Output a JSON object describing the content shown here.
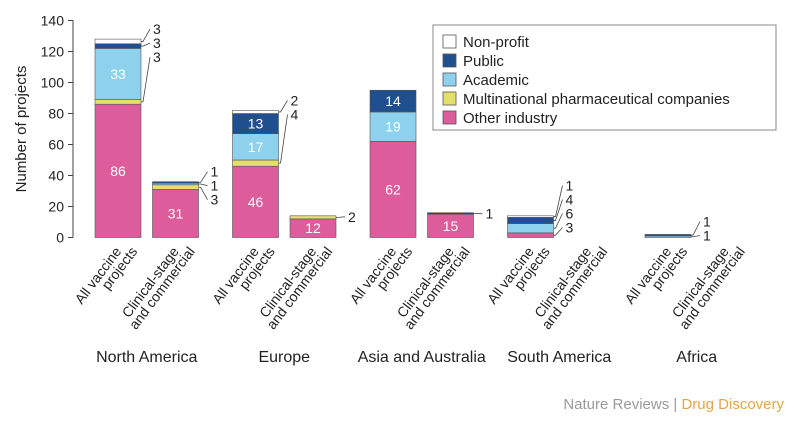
{
  "chart_data": {
    "type": "bar",
    "stacked": true,
    "ylabel": "Number of projects",
    "ylim": [
      0,
      140
    ],
    "yticks": [
      0,
      20,
      40,
      60,
      80,
      100,
      120,
      140
    ],
    "legend_position": "top-right",
    "series": [
      {
        "name": "Other industry",
        "color": "#dd5c9b"
      },
      {
        "name": "Multinational pharmaceutical companies",
        "color": "#e4df6a"
      },
      {
        "name": "Academic",
        "color": "#8ed1ec"
      },
      {
        "name": "Public",
        "color": "#1f4f8e"
      },
      {
        "name": "Non-profit",
        "color": "#ffffff"
      }
    ],
    "legend_order": [
      "Non-profit",
      "Public",
      "Academic",
      "Multinational pharmaceutical companies",
      "Other industry"
    ],
    "bar_labels": [
      "All vaccine projects",
      "Clinical-stage and commercial"
    ],
    "groups": [
      {
        "name": "North America",
        "bars": [
          {
            "values": [
              86,
              3,
              33,
              3,
              3
            ],
            "inside": [
              "86",
              "",
              "33",
              "",
              ""
            ],
            "callouts": [
              "3",
              "3",
              "3"
            ]
          },
          {
            "values": [
              31,
              3,
              1,
              1,
              0
            ],
            "inside": [
              "31",
              "",
              "",
              "",
              ""
            ],
            "callouts": [
              "1",
              "1",
              "3"
            ]
          }
        ]
      },
      {
        "name": "Europe",
        "bars": [
          {
            "values": [
              46,
              4,
              17,
              13,
              2
            ],
            "inside": [
              "46",
              "",
              "17",
              "13",
              ""
            ],
            "callouts": [
              "2",
              "4"
            ]
          },
          {
            "values": [
              12,
              2,
              0,
              0,
              0
            ],
            "inside": [
              "12",
              "",
              "",
              "",
              ""
            ],
            "callouts": [
              "2"
            ]
          }
        ]
      },
      {
        "name": "Asia and Australia",
        "bars": [
          {
            "values": [
              62,
              0,
              19,
              14,
              0
            ],
            "inside": [
              "62",
              "",
              "19",
              "14",
              ""
            ],
            "callouts": []
          },
          {
            "values": [
              15,
              0,
              0,
              1,
              0
            ],
            "inside": [
              "15",
              "",
              "",
              "",
              ""
            ],
            "callouts": [
              "1"
            ]
          }
        ]
      },
      {
        "name": "South America",
        "bars": [
          {
            "values": [
              3,
              0,
              6,
              4,
              1
            ],
            "inside": [
              "",
              "",
              "",
              "",
              ""
            ],
            "callouts": [
              "1",
              "4",
              "6",
              "3"
            ]
          },
          {
            "values": [
              0,
              0,
              0,
              0,
              0
            ],
            "inside": [
              "",
              "",
              "",
              "",
              ""
            ],
            "callouts": []
          }
        ]
      },
      {
        "name": "Africa",
        "bars": [
          {
            "values": [
              0,
              0,
              1,
              1,
              0
            ],
            "inside": [
              "",
              "",
              "",
              "",
              ""
            ],
            "callouts": [
              "1",
              "1"
            ]
          },
          {
            "values": [
              0,
              0,
              0,
              0,
              0
            ],
            "inside": [
              "",
              "",
              "",
              "",
              ""
            ],
            "callouts": []
          }
        ]
      }
    ]
  },
  "credit": {
    "publisher": "Nature Reviews",
    "separator": "|",
    "journal": "Drug Discovery"
  }
}
